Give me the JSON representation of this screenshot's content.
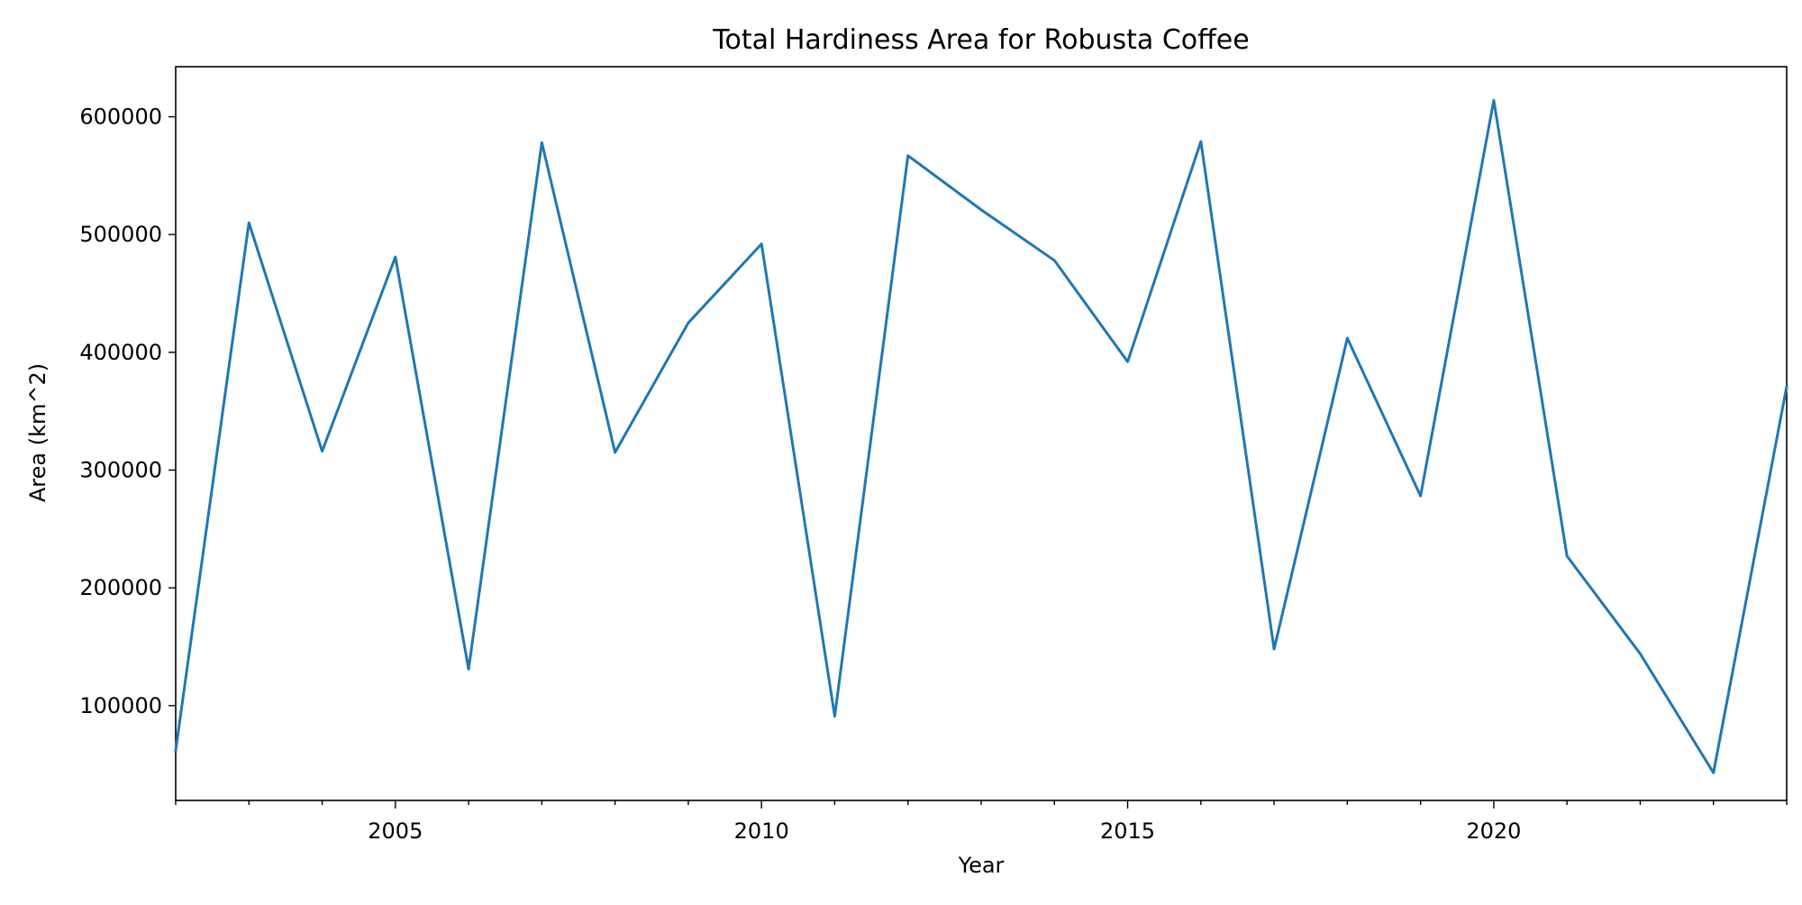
{
  "chart_data": {
    "type": "line",
    "title": "Total Hardiness Area for Robusta Coffee",
    "xlabel": "Year",
    "ylabel": "Area (km^2)",
    "x": [
      2002,
      2003,
      2004,
      2005,
      2006,
      2007,
      2008,
      2009,
      2010,
      2011,
      2012,
      2013,
      2014,
      2015,
      2016,
      2017,
      2018,
      2019,
      2020,
      2021,
      2022,
      2023,
      2024
    ],
    "series": [
      {
        "name": "",
        "values": [
          62000,
          510000,
          316000,
          481000,
          131000,
          578000,
          315000,
          425000,
          492000,
          91000,
          567000,
          521000,
          478000,
          392000,
          579000,
          148000,
          412000,
          278000,
          614000,
          227000,
          144000,
          43000,
          371000
        ]
      }
    ],
    "xlim": [
      2002,
      2024
    ],
    "ylim": [
      19500,
      642500
    ],
    "x_ticks_major": [
      2005,
      2010,
      2015,
      2020
    ],
    "x_tick_labels": [
      "2005",
      "2010",
      "2015",
      "2020"
    ],
    "y_ticks": [
      100000,
      200000,
      300000,
      400000,
      500000,
      600000
    ],
    "y_tick_labels": [
      "100000",
      "200000",
      "300000",
      "400000",
      "500000",
      "600000"
    ],
    "grid": false,
    "colors": {
      "line": "#1f77b4",
      "axes": "#000000",
      "background": "#ffffff"
    }
  }
}
